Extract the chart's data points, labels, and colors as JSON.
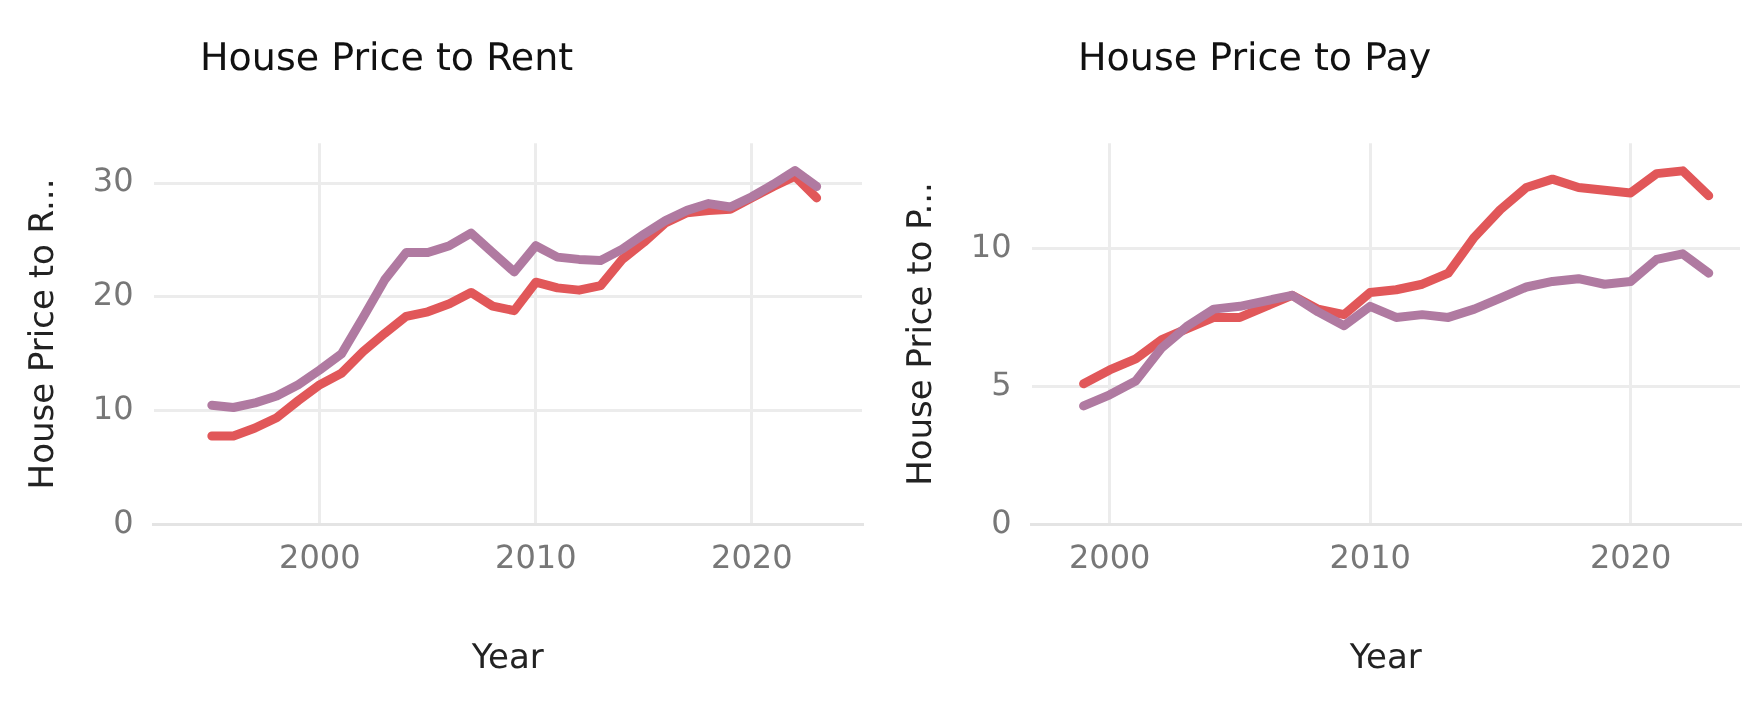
{
  "chart_data": [
    {
      "type": "line",
      "title": "House Price to Rent",
      "xlabel": "Year",
      "ylabel": "House Price to R...",
      "x": [
        1995,
        1996,
        1997,
        1998,
        1999,
        2000,
        2001,
        2002,
        2003,
        2004,
        2005,
        2006,
        2007,
        2008,
        2009,
        2010,
        2011,
        2012,
        2013,
        2014,
        2015,
        2016,
        2017,
        2018,
        2019,
        2020,
        2021,
        2022,
        2023
      ],
      "series": [
        {
          "color": "#b07aa1",
          "values": [
            10.5,
            10.3,
            10.7,
            11.3,
            12.3,
            13.6,
            15.0,
            18.2,
            21.5,
            23.9,
            23.9,
            24.5,
            25.6,
            23.9,
            22.2,
            24.5,
            23.5,
            23.3,
            23.2,
            24.2,
            25.5,
            26.7,
            27.6,
            28.2,
            27.9,
            28.8,
            29.9,
            31.1,
            29.7
          ]
        },
        {
          "color": "#e15759",
          "values": [
            7.8,
            7.8,
            8.5,
            9.4,
            10.9,
            12.3,
            13.3,
            15.2,
            16.8,
            18.3,
            18.7,
            19.4,
            20.4,
            19.2,
            18.8,
            21.3,
            20.8,
            20.6,
            21.0,
            23.3,
            24.8,
            26.5,
            27.4,
            27.6,
            27.7,
            28.7,
            29.7,
            30.6,
            28.7
          ]
        }
      ],
      "xlim": [
        1992.3,
        2025.1
      ],
      "xticks": [
        2000,
        2010,
        2020
      ],
      "ylim": [
        0,
        33.5
      ],
      "yticks": [
        0,
        10,
        20,
        30
      ],
      "grid": true,
      "legend": false,
      "marker": "none",
      "line_style": "solid"
    },
    {
      "type": "line",
      "title": "House Price to Pay",
      "xlabel": "Year",
      "ylabel": "House Price to P...",
      "x": [
        1999,
        2000,
        2001,
        2002,
        2003,
        2004,
        2005,
        2006,
        2007,
        2008,
        2009,
        2010,
        2011,
        2012,
        2013,
        2014,
        2015,
        2016,
        2017,
        2018,
        2019,
        2020,
        2021,
        2022,
        2023
      ],
      "series": [
        {
          "color": "#b07aa1",
          "values": [
            4.3,
            4.7,
            5.2,
            6.4,
            7.2,
            7.8,
            7.9,
            8.1,
            8.3,
            7.7,
            7.2,
            7.9,
            7.5,
            7.6,
            7.5,
            7.8,
            8.2,
            8.6,
            8.8,
            8.9,
            8.7,
            8.8,
            9.6,
            9.8,
            9.1
          ]
        },
        {
          "color": "#e15759",
          "values": [
            5.1,
            5.6,
            6.0,
            6.7,
            7.1,
            7.5,
            7.5,
            7.9,
            8.3,
            7.8,
            7.6,
            8.4,
            8.5,
            8.7,
            9.1,
            10.4,
            11.4,
            12.2,
            12.5,
            12.2,
            12.1,
            12.0,
            12.7,
            12.8,
            11.9
          ]
        }
      ],
      "xlim": [
        1997,
        2024.2
      ],
      "xticks": [
        2000,
        2010,
        2020
      ],
      "ylim": [
        0,
        13.8
      ],
      "yticks": [
        0,
        5,
        10
      ],
      "grid": true,
      "legend": false,
      "marker": "none",
      "line_style": "solid"
    }
  ]
}
